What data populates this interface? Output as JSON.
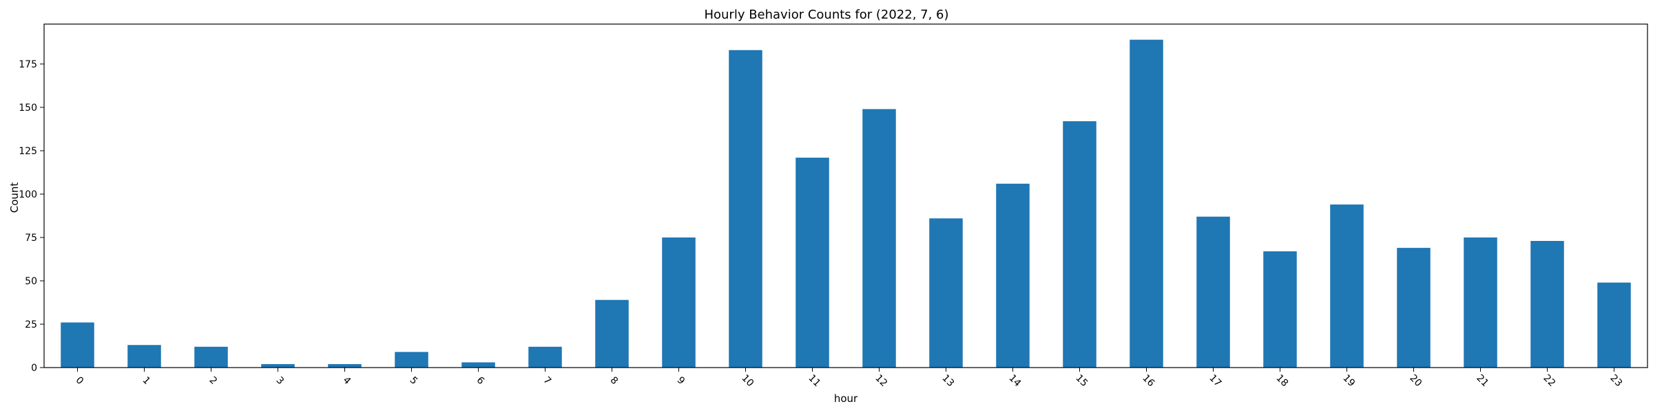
{
  "chart_data": {
    "type": "bar",
    "title": "Hourly Behavior Counts for (2022, 7, 6)",
    "xlabel": "hour",
    "ylabel": "Count",
    "categories": [
      "0",
      "1",
      "2",
      "3",
      "4",
      "5",
      "6",
      "7",
      "8",
      "9",
      "10",
      "11",
      "12",
      "13",
      "14",
      "15",
      "16",
      "17",
      "18",
      "19",
      "20",
      "21",
      "22",
      "23"
    ],
    "values": [
      26,
      13,
      12,
      2,
      2,
      9,
      3,
      12,
      39,
      75,
      183,
      121,
      149,
      86,
      106,
      142,
      189,
      87,
      67,
      94,
      69,
      75,
      73,
      49
    ],
    "ylim": [
      0,
      198
    ],
    "yticks": [
      "0",
      "25",
      "50",
      "75",
      "100",
      "125",
      "150",
      "175"
    ],
    "bar_color": "#1f77b4",
    "grid": false,
    "legend": "none"
  }
}
